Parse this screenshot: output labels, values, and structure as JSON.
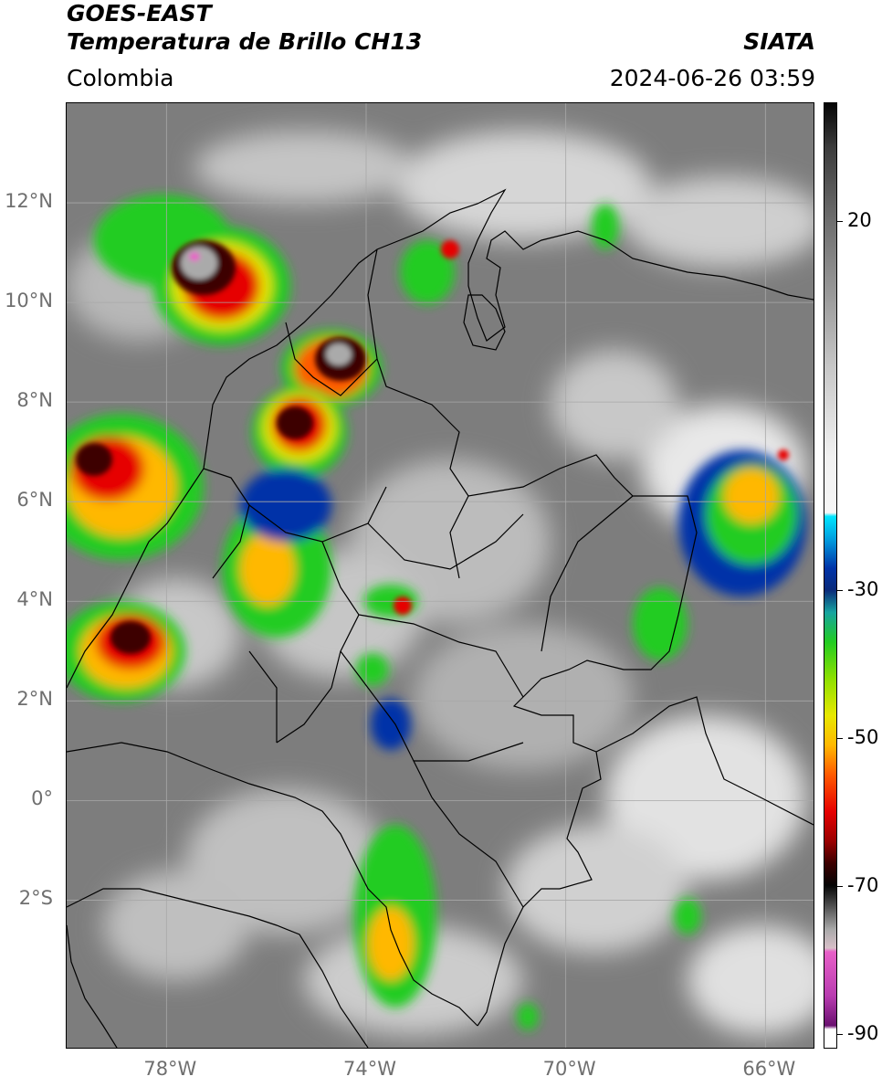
{
  "header": {
    "satellite": "GOES-EAST",
    "product": "Temperatura de Brillo CH13",
    "region": "Colombia",
    "agency": "SIATA",
    "datetime": "2024-06-26 03:59"
  },
  "axes": {
    "lat_ticks": [
      {
        "label": "12°N",
        "value": 12
      },
      {
        "label": "10°N",
        "value": 10
      },
      {
        "label": "8°N",
        "value": 8
      },
      {
        "label": "6°N",
        "value": 6
      },
      {
        "label": "4°N",
        "value": 4
      },
      {
        "label": "2°N",
        "value": 2
      },
      {
        "label": "0°",
        "value": 0
      },
      {
        "label": "2°S",
        "value": -2
      }
    ],
    "lon_ticks": [
      {
        "label": "78°W",
        "value": -78
      },
      {
        "label": "74°W",
        "value": -74
      },
      {
        "label": "70°W",
        "value": -70
      },
      {
        "label": "66°W",
        "value": -66
      }
    ],
    "lat_range": [
      -5,
      14
    ],
    "lon_range": [
      -80,
      -65
    ]
  },
  "colorbar": {
    "range": [
      -92,
      36
    ],
    "ticks": [
      {
        "label": "20",
        "value": 20
      },
      {
        "label": "-30",
        "value": -30
      },
      {
        "label": "-50",
        "value": -50
      },
      {
        "label": "-70",
        "value": -70
      },
      {
        "label": "-90",
        "value": -90
      }
    ],
    "stops": [
      {
        "v": 36,
        "c": "#050505"
      },
      {
        "v": 30,
        "c": "#3c3c3c"
      },
      {
        "v": 20,
        "c": "#6e6e6e"
      },
      {
        "v": 10,
        "c": "#9a9a9a"
      },
      {
        "v": 0,
        "c": "#c8c8c8"
      },
      {
        "v": -12,
        "c": "#f2f2f2"
      },
      {
        "v": -19.5,
        "c": "#f6f6f6"
      },
      {
        "v": -20,
        "c": "#00e5ff"
      },
      {
        "v": -23,
        "c": "#00a0e0"
      },
      {
        "v": -27,
        "c": "#0033a8"
      },
      {
        "v": -30,
        "c": "#0a2a7a"
      },
      {
        "v": -33,
        "c": "#17a4a0"
      },
      {
        "v": -37,
        "c": "#22cc22"
      },
      {
        "v": -42,
        "c": "#8ee000"
      },
      {
        "v": -47,
        "c": "#e8e800"
      },
      {
        "v": -51,
        "c": "#ffb800"
      },
      {
        "v": -55,
        "c": "#ff5a00"
      },
      {
        "v": -60,
        "c": "#e60000"
      },
      {
        "v": -64,
        "c": "#9a0000"
      },
      {
        "v": -67,
        "c": "#3c0000"
      },
      {
        "v": -70,
        "c": "#050505"
      },
      {
        "v": -73,
        "c": "#555555"
      },
      {
        "v": -76,
        "c": "#aaaaaa"
      },
      {
        "v": -78.5,
        "c": "#d8c0c8"
      },
      {
        "v": -79,
        "c": "#e860c8"
      },
      {
        "v": -85,
        "c": "#b83cb0"
      },
      {
        "v": -89,
        "c": "#6a1070"
      },
      {
        "v": -89.5,
        "c": "#ffffff"
      },
      {
        "v": -92,
        "c": "#ffffff"
      }
    ]
  },
  "map_colors": {
    "background": "#7d7d7d",
    "grid": "#a8a8a8",
    "borders": "#000000"
  }
}
